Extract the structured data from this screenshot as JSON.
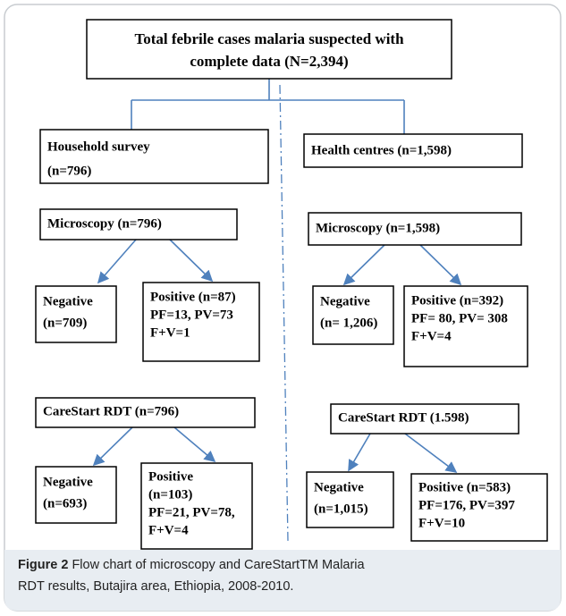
{
  "nodes": [
    {
      "lines": [
        "Total febrile cases malaria suspected with",
        "complete data (N=2,394)"
      ]
    },
    {
      "lines": [
        "Household survey",
        "(n=796)"
      ]
    },
    {
      "lines": [
        "Health centres (n=1,598)"
      ]
    },
    {
      "lines": [
        "Microscopy (n=796)"
      ]
    },
    {
      "lines": [
        "Microscopy (n=1,598)"
      ]
    },
    {
      "lines": [
        "Negative",
        "(n=709)"
      ]
    },
    {
      "lines": [
        "Positive (n=87)",
        "PF=13, PV=73",
        "F+V=1"
      ]
    },
    {
      "lines": [
        "Negative",
        "(n= 1,206)"
      ]
    },
    {
      "lines": [
        "Positive (n=392)",
        "PF= 80, PV= 308",
        "F+V=4"
      ]
    },
    {
      "lines": [
        "CareStart RDT (n=796)"
      ]
    },
    {
      "lines": [
        "CareStart RDT (1.598)"
      ]
    },
    {
      "lines": [
        "Negative",
        "(n=693)"
      ]
    },
    {
      "lines": [
        "Positive",
        "(n=103)",
        "PF=21, PV=78,",
        "F+V=4"
      ]
    },
    {
      "lines": [
        "Negative",
        "(n=1,015)"
      ]
    },
    {
      "lines": [
        "Positive (n=583)",
        "PF=176, PV=397",
        "F+V=10"
      ]
    }
  ],
  "caption": {
    "label": "Figure 2",
    "lines": [
      "Flow chart of microscopy and CareStartTM Malaria",
      "RDT results, Butajira area, Ethiopia, 2008-2010."
    ]
  }
}
